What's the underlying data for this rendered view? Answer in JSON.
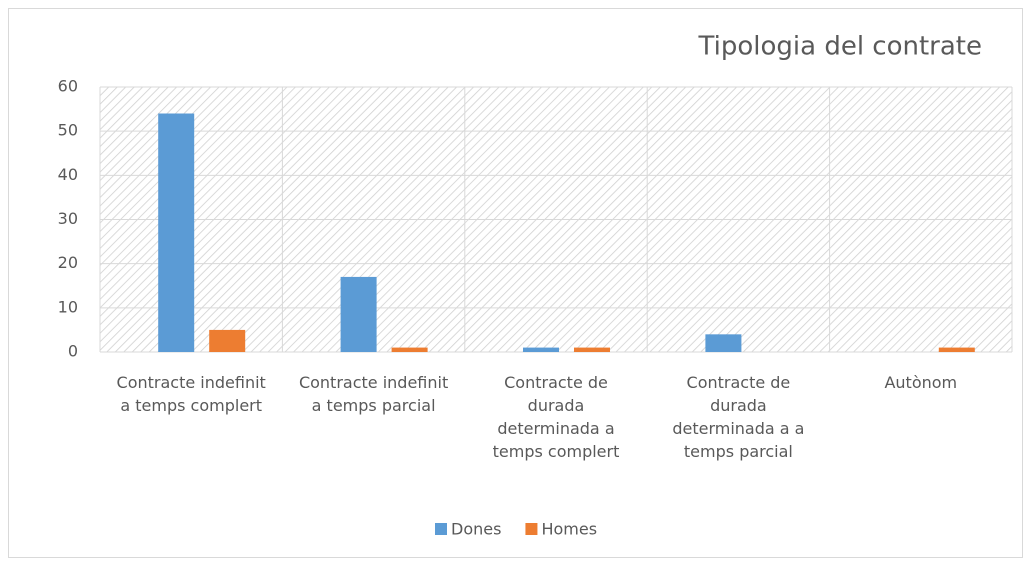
{
  "chart_data": {
    "type": "bar",
    "title": "Tipologia del contrate",
    "categories": [
      "Contracte indefinit a temps complert",
      "Contracte indefinit a temps parcial",
      "Contracte de durada determinada a temps complert",
      "Contracte de durada determinada a a temps parcial",
      "Autònom"
    ],
    "series": [
      {
        "name": "Dones",
        "color": "#5b9bd5",
        "values": [
          54,
          17,
          1,
          4,
          0
        ]
      },
      {
        "name": "Homes",
        "color": "#ed7d31",
        "values": [
          5,
          1,
          1,
          0,
          1
        ]
      }
    ],
    "ylim": [
      0,
      60
    ],
    "yticks": [
      0,
      10,
      20,
      30,
      40,
      50,
      60
    ],
    "grid": true,
    "legend": "bottom"
  }
}
